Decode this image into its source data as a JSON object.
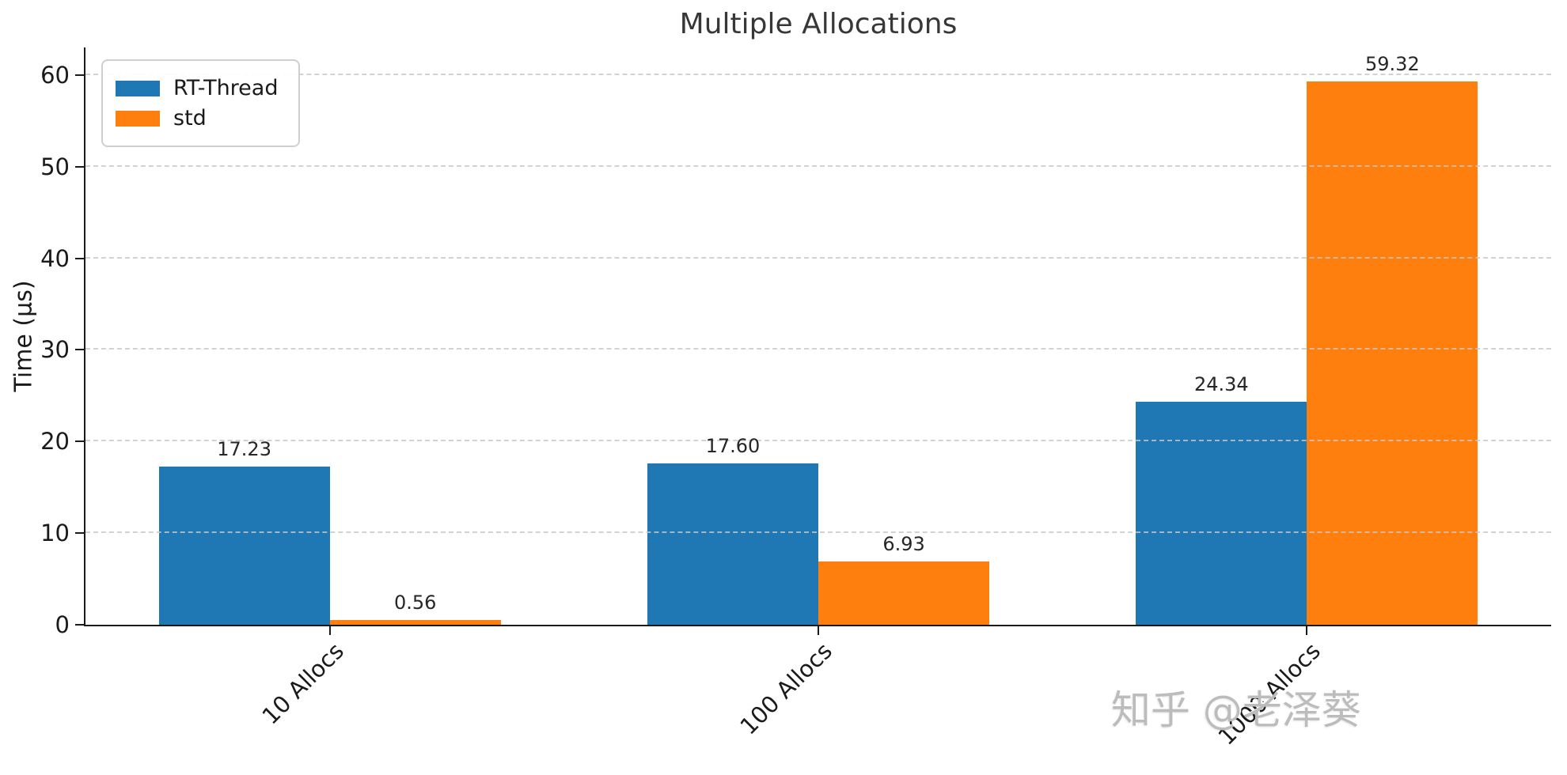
{
  "figure": {
    "watermark": "知乎 @老泽葵"
  },
  "chart_data": {
    "type": "bar",
    "title": "Multiple Allocations",
    "xlabel": "",
    "ylabel": "Time (μs)",
    "categories": [
      "10 Allocs",
      "100 Allocs",
      "1000 Allocs"
    ],
    "series": [
      {
        "name": "RT-Thread",
        "color": "#1f77b4",
        "values": [
          17.23,
          17.6,
          24.34
        ],
        "labels": [
          "17.23",
          "17.60",
          "24.34"
        ]
      },
      {
        "name": "std",
        "color": "#ff7f0e",
        "values": [
          0.56,
          6.93,
          59.32
        ],
        "labels": [
          "0.56",
          "6.93",
          "59.32"
        ]
      }
    ],
    "ylim": [
      0,
      63
    ],
    "yticks": [
      0,
      10,
      20,
      30,
      40,
      50,
      60
    ],
    "grid": "dashed-horizontal",
    "legend_position": "upper-left",
    "bar_value_labels": true,
    "bar_width_fraction": 0.35,
    "xtick_rotation": 45
  }
}
